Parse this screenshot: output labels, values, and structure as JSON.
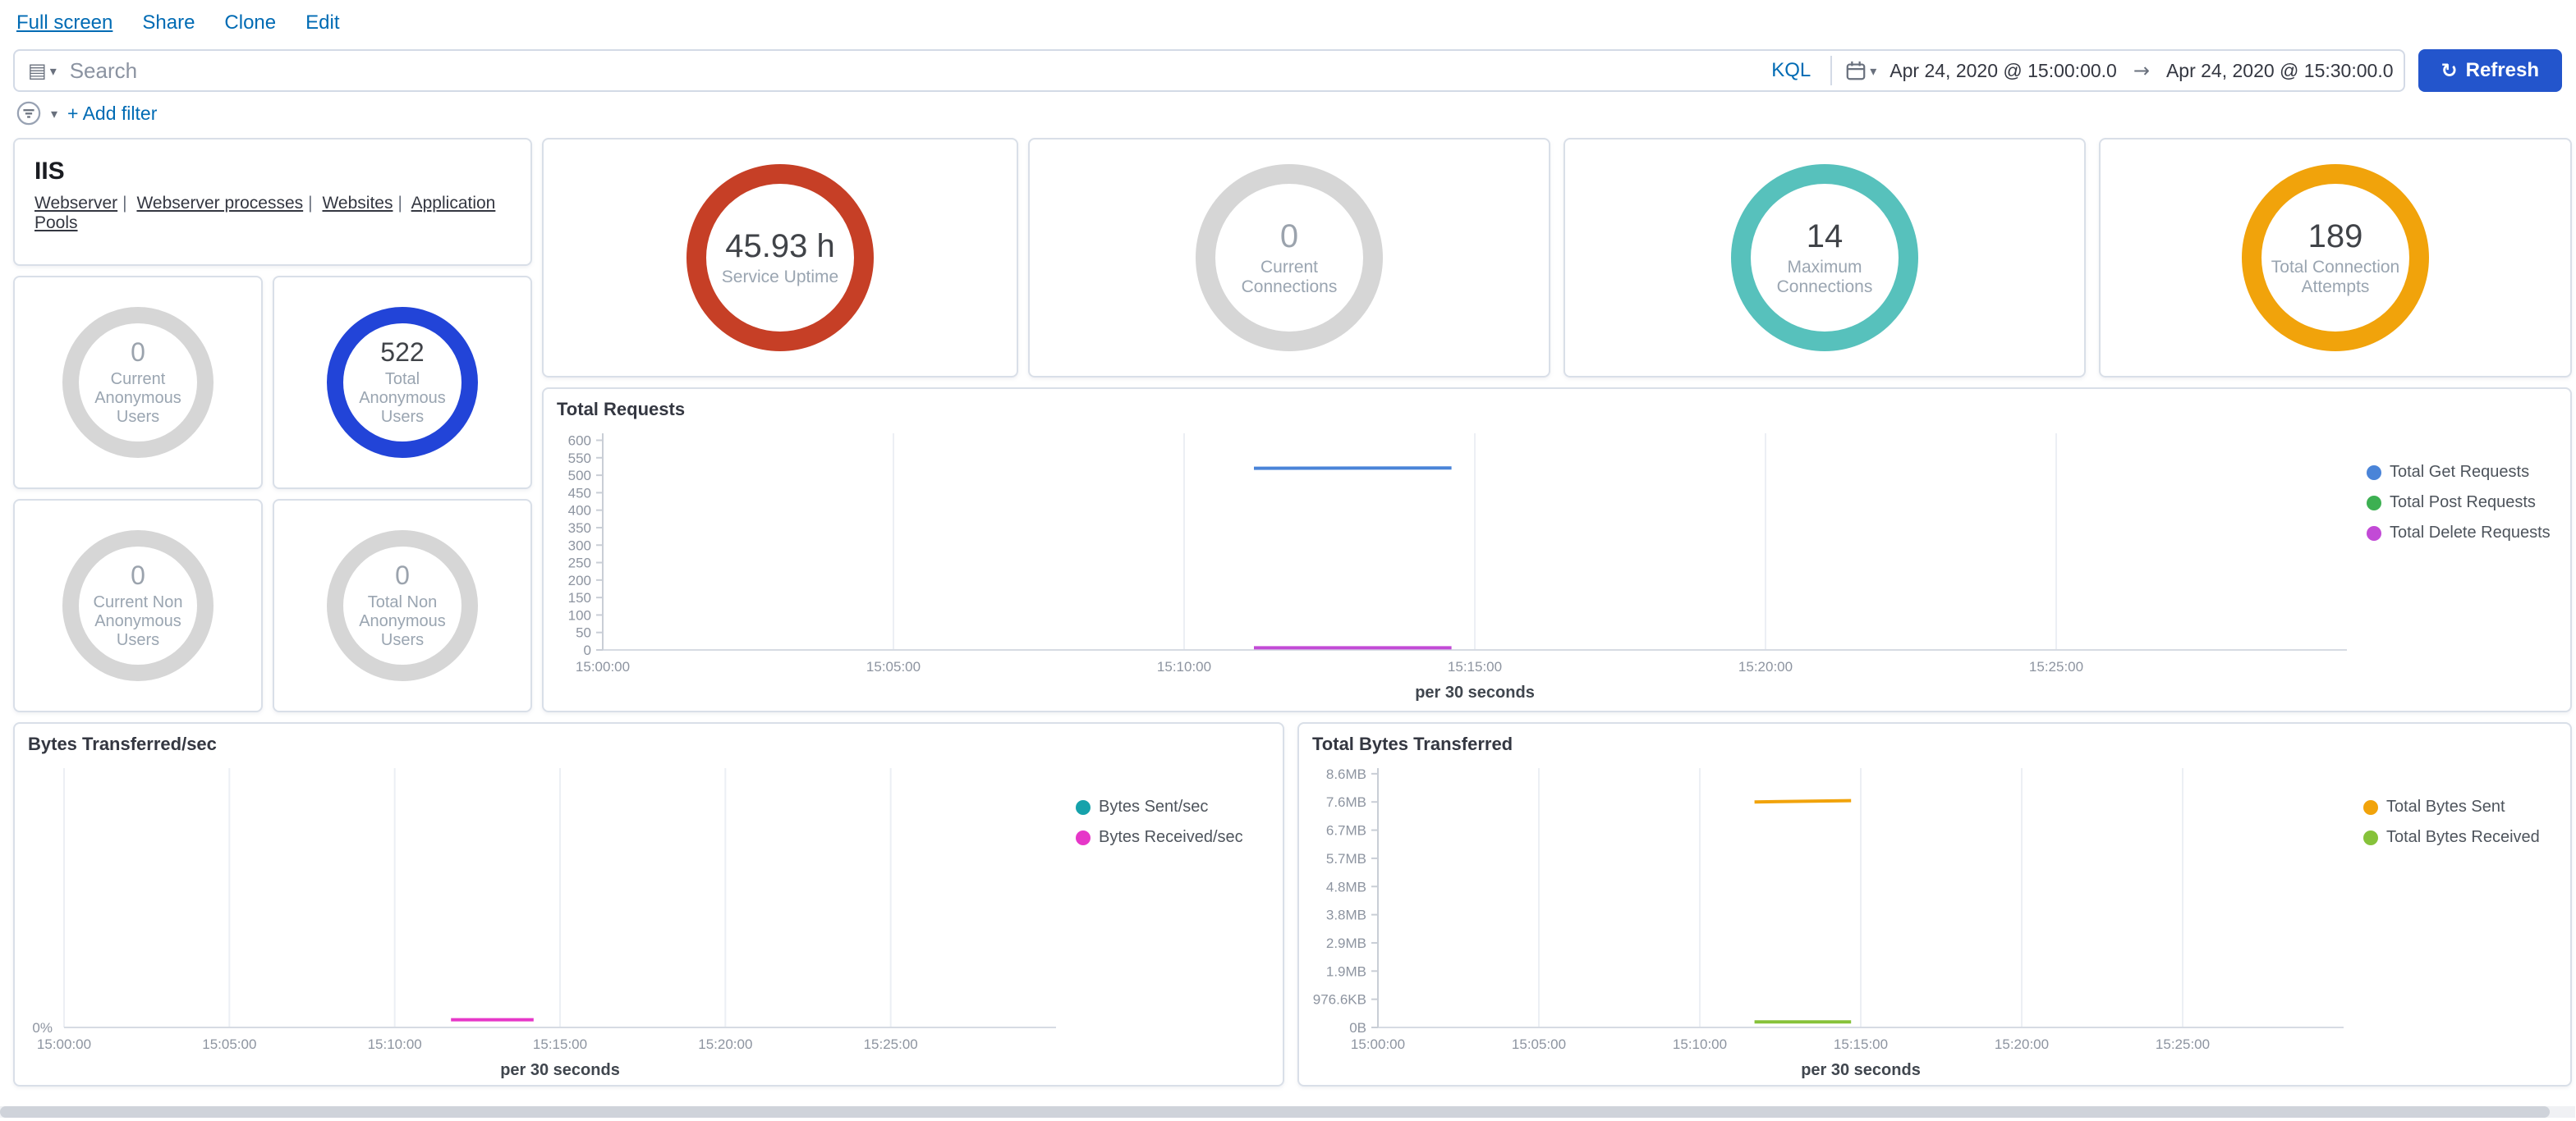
{
  "topnav": {
    "links": [
      "Full screen",
      "Share",
      "Clone",
      "Edit"
    ]
  },
  "querybar": {
    "search_placeholder": "Search",
    "kql_label": "KQL",
    "date_from": "Apr 24, 2020 @ 15:00:00.0",
    "date_to": "Apr 24, 2020 @ 15:30:00.0",
    "refresh_label": "Refresh",
    "refresh_button_color": "#2355cc"
  },
  "filterbar": {
    "add_filter_label": "+ Add filter"
  },
  "icons": {
    "saved_query": "▤",
    "chevron_down": "▾",
    "refresh": "↻",
    "range_arrow": "→",
    "calendar": "calendar-icon",
    "filter": "filter-icon"
  },
  "panels": {
    "iis": {
      "title": "IIS",
      "sep": "|",
      "links": [
        "Webserver",
        "Webserver processes",
        "Websites",
        "Application Pools"
      ]
    },
    "gauges": [
      {
        "value": "45.93 h",
        "label": "Service Uptime",
        "color": "#c63f26"
      },
      {
        "value": "0",
        "label": "Current Connections",
        "color": "#d6d6d6"
      },
      {
        "value": "14",
        "label": "Maximum Connections",
        "color": "#57c1bc"
      },
      {
        "value": "189",
        "label": "Total Connection Attempts",
        "color": "#f1a30b"
      },
      {
        "value": "0",
        "label": "Current Anonymous Users",
        "color": "#d6d6d6"
      },
      {
        "value": "522",
        "label": "Total Anonymous Users",
        "color": "#2244d8"
      },
      {
        "value": "0",
        "label": "Current Non Anonymous Users",
        "color": "#d6d6d6"
      },
      {
        "value": "0",
        "label": "Total Non Anonymous Users",
        "color": "#d6d6d6"
      }
    ]
  },
  "chart_data": [
    {
      "type": "line",
      "title": "Total Requests",
      "xlabel": "per 30 seconds",
      "x_unit": "minutes after 15:00:00",
      "x_domain": [
        0,
        30
      ],
      "x_ticks": [
        {
          "v": 0,
          "label": "15:00:00"
        },
        {
          "v": 5,
          "label": "15:05:00"
        },
        {
          "v": 10,
          "label": "15:10:00"
        },
        {
          "v": 15,
          "label": "15:15:00"
        },
        {
          "v": 20,
          "label": "15:20:00"
        },
        {
          "v": 25,
          "label": "15:25:00"
        }
      ],
      "ylim": [
        0,
        620
      ],
      "y_ticks": [
        {
          "v": 0,
          "label": "0"
        },
        {
          "v": 50,
          "label": "50"
        },
        {
          "v": 100,
          "label": "100"
        },
        {
          "v": 150,
          "label": "150"
        },
        {
          "v": 200,
          "label": "200"
        },
        {
          "v": 250,
          "label": "250"
        },
        {
          "v": 300,
          "label": "300"
        },
        {
          "v": 350,
          "label": "350"
        },
        {
          "v": 400,
          "label": "400"
        },
        {
          "v": 450,
          "label": "450"
        },
        {
          "v": 500,
          "label": "500"
        },
        {
          "v": 550,
          "label": "550"
        },
        {
          "v": 600,
          "label": "600"
        }
      ],
      "left_axis": true,
      "margin_left": 36,
      "legend_position": "right",
      "series": [
        {
          "name": "Total Get Requests",
          "color": "#4a84d8",
          "points": [
            [
              11.2,
              520
            ],
            [
              14.6,
              521
            ]
          ]
        },
        {
          "name": "Total Post Requests",
          "color": "#3db052",
          "points": []
        },
        {
          "name": "Total Delete Requests",
          "color": "#c24ad6",
          "points": [
            [
              11.2,
              6
            ],
            [
              14.6,
              6
            ]
          ]
        }
      ]
    },
    {
      "type": "line",
      "title": "Bytes Transferred/sec",
      "xlabel": "per 30 seconds",
      "x_unit": "minutes after 15:00:00",
      "x_domain": [
        0,
        30
      ],
      "x_ticks": [
        {
          "v": 0,
          "label": "15:00:00"
        },
        {
          "v": 5,
          "label": "15:05:00"
        },
        {
          "v": 10,
          "label": "15:10:00"
        },
        {
          "v": 15,
          "label": "15:15:00"
        },
        {
          "v": 20,
          "label": "15:20:00"
        },
        {
          "v": 25,
          "label": "15:25:00"
        }
      ],
      "ylim": [
        0,
        1
      ],
      "y_ticks": [
        {
          "v": 0,
          "label": "0%"
        }
      ],
      "left_axis": false,
      "margin_left": 30,
      "legend_position": "right",
      "series": [
        {
          "name": "Bytes Sent/sec",
          "color": "#16a2ab",
          "points": []
        },
        {
          "name": "Bytes Received/sec",
          "color": "#e637c8",
          "points": [
            [
              11.7,
              0.03
            ],
            [
              14.2,
              0.03
            ]
          ]
        }
      ]
    },
    {
      "type": "line",
      "title": "Total Bytes Transferred",
      "xlabel": "per 30 seconds",
      "x_unit": "minutes after 15:00:00",
      "x_domain": [
        0,
        30
      ],
      "x_ticks": [
        {
          "v": 0,
          "label": "15:00:00"
        },
        {
          "v": 5,
          "label": "15:05:00"
        },
        {
          "v": 10,
          "label": "15:10:00"
        },
        {
          "v": 15,
          "label": "15:15:00"
        },
        {
          "v": 20,
          "label": "15:20:00"
        },
        {
          "v": 25,
          "label": "15:25:00"
        }
      ],
      "ylim": [
        0,
        9200000
      ],
      "y_ticks": [
        {
          "v": 0,
          "label": "0B"
        },
        {
          "v": 1000000,
          "label": "976.6KB"
        },
        {
          "v": 2000000,
          "label": "1.9MB"
        },
        {
          "v": 3000000,
          "label": "2.9MB"
        },
        {
          "v": 4000000,
          "label": "3.8MB"
        },
        {
          "v": 5000000,
          "label": "4.8MB"
        },
        {
          "v": 6000000,
          "label": "5.7MB"
        },
        {
          "v": 7000000,
          "label": "6.7MB"
        },
        {
          "v": 8000000,
          "label": "7.6MB"
        },
        {
          "v": 9000000,
          "label": "8.6MB"
        }
      ],
      "left_axis": true,
      "margin_left": 48,
      "legend_position": "right",
      "series": [
        {
          "name": "Total Bytes Sent",
          "color": "#f1a30b",
          "points": [
            [
              11.7,
              8000000
            ],
            [
              14.7,
              8050000
            ]
          ]
        },
        {
          "name": "Total Bytes Received",
          "color": "#86c23a",
          "points": [
            [
              11.7,
              200000
            ],
            [
              14.7,
              200000
            ]
          ]
        }
      ]
    }
  ]
}
